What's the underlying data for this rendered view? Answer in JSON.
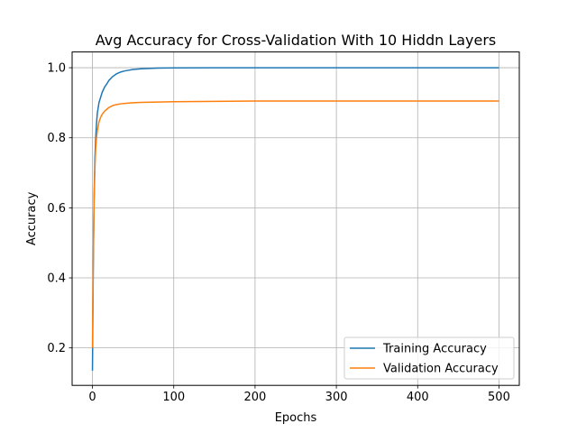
{
  "chart_data": {
    "type": "line",
    "title": "Avg Accuracy for Cross-Validation With 10 Hiddn Layers",
    "xlabel": "Epochs",
    "ylabel": "Accuracy",
    "xlim": [
      -25,
      525
    ],
    "ylim": [
      0.093,
      1.045
    ],
    "x_ticks": [
      0,
      100,
      200,
      300,
      400,
      500
    ],
    "x_tick_labels": [
      "0",
      "100",
      "200",
      "300",
      "400",
      "500"
    ],
    "y_ticks": [
      0.2,
      0.4,
      0.6,
      0.8,
      1.0
    ],
    "y_tick_labels": [
      "0.2",
      "0.4",
      "0.6",
      "0.8",
      "1.0"
    ],
    "grid": true,
    "legend_position": "lower-right",
    "series": [
      {
        "name": "Training Accuracy",
        "color": "#1f77b4",
        "x": [
          0,
          1,
          2,
          3,
          4,
          5,
          6,
          8,
          10,
          12,
          15,
          18,
          20,
          25,
          30,
          35,
          40,
          50,
          60,
          70,
          80,
          100,
          150,
          200,
          300,
          400,
          500
        ],
        "y": [
          0.135,
          0.42,
          0.63,
          0.74,
          0.8,
          0.84,
          0.87,
          0.9,
          0.915,
          0.93,
          0.945,
          0.955,
          0.963,
          0.975,
          0.983,
          0.988,
          0.991,
          0.995,
          0.997,
          0.998,
          0.999,
          0.9995,
          1.0,
          1.0,
          1.0,
          1.0,
          1.0
        ]
      },
      {
        "name": "Validation Accuracy",
        "color": "#ff7f0e",
        "x": [
          0,
          1,
          2,
          3,
          4,
          5,
          6,
          8,
          10,
          12,
          15,
          18,
          20,
          25,
          30,
          35,
          40,
          50,
          60,
          80,
          100,
          150,
          200,
          300,
          400,
          500
        ],
        "y": [
          0.2,
          0.45,
          0.62,
          0.71,
          0.77,
          0.8,
          0.82,
          0.845,
          0.858,
          0.867,
          0.876,
          0.882,
          0.886,
          0.892,
          0.895,
          0.897,
          0.898,
          0.9,
          0.901,
          0.902,
          0.903,
          0.904,
          0.905,
          0.905,
          0.905,
          0.905
        ]
      }
    ]
  }
}
